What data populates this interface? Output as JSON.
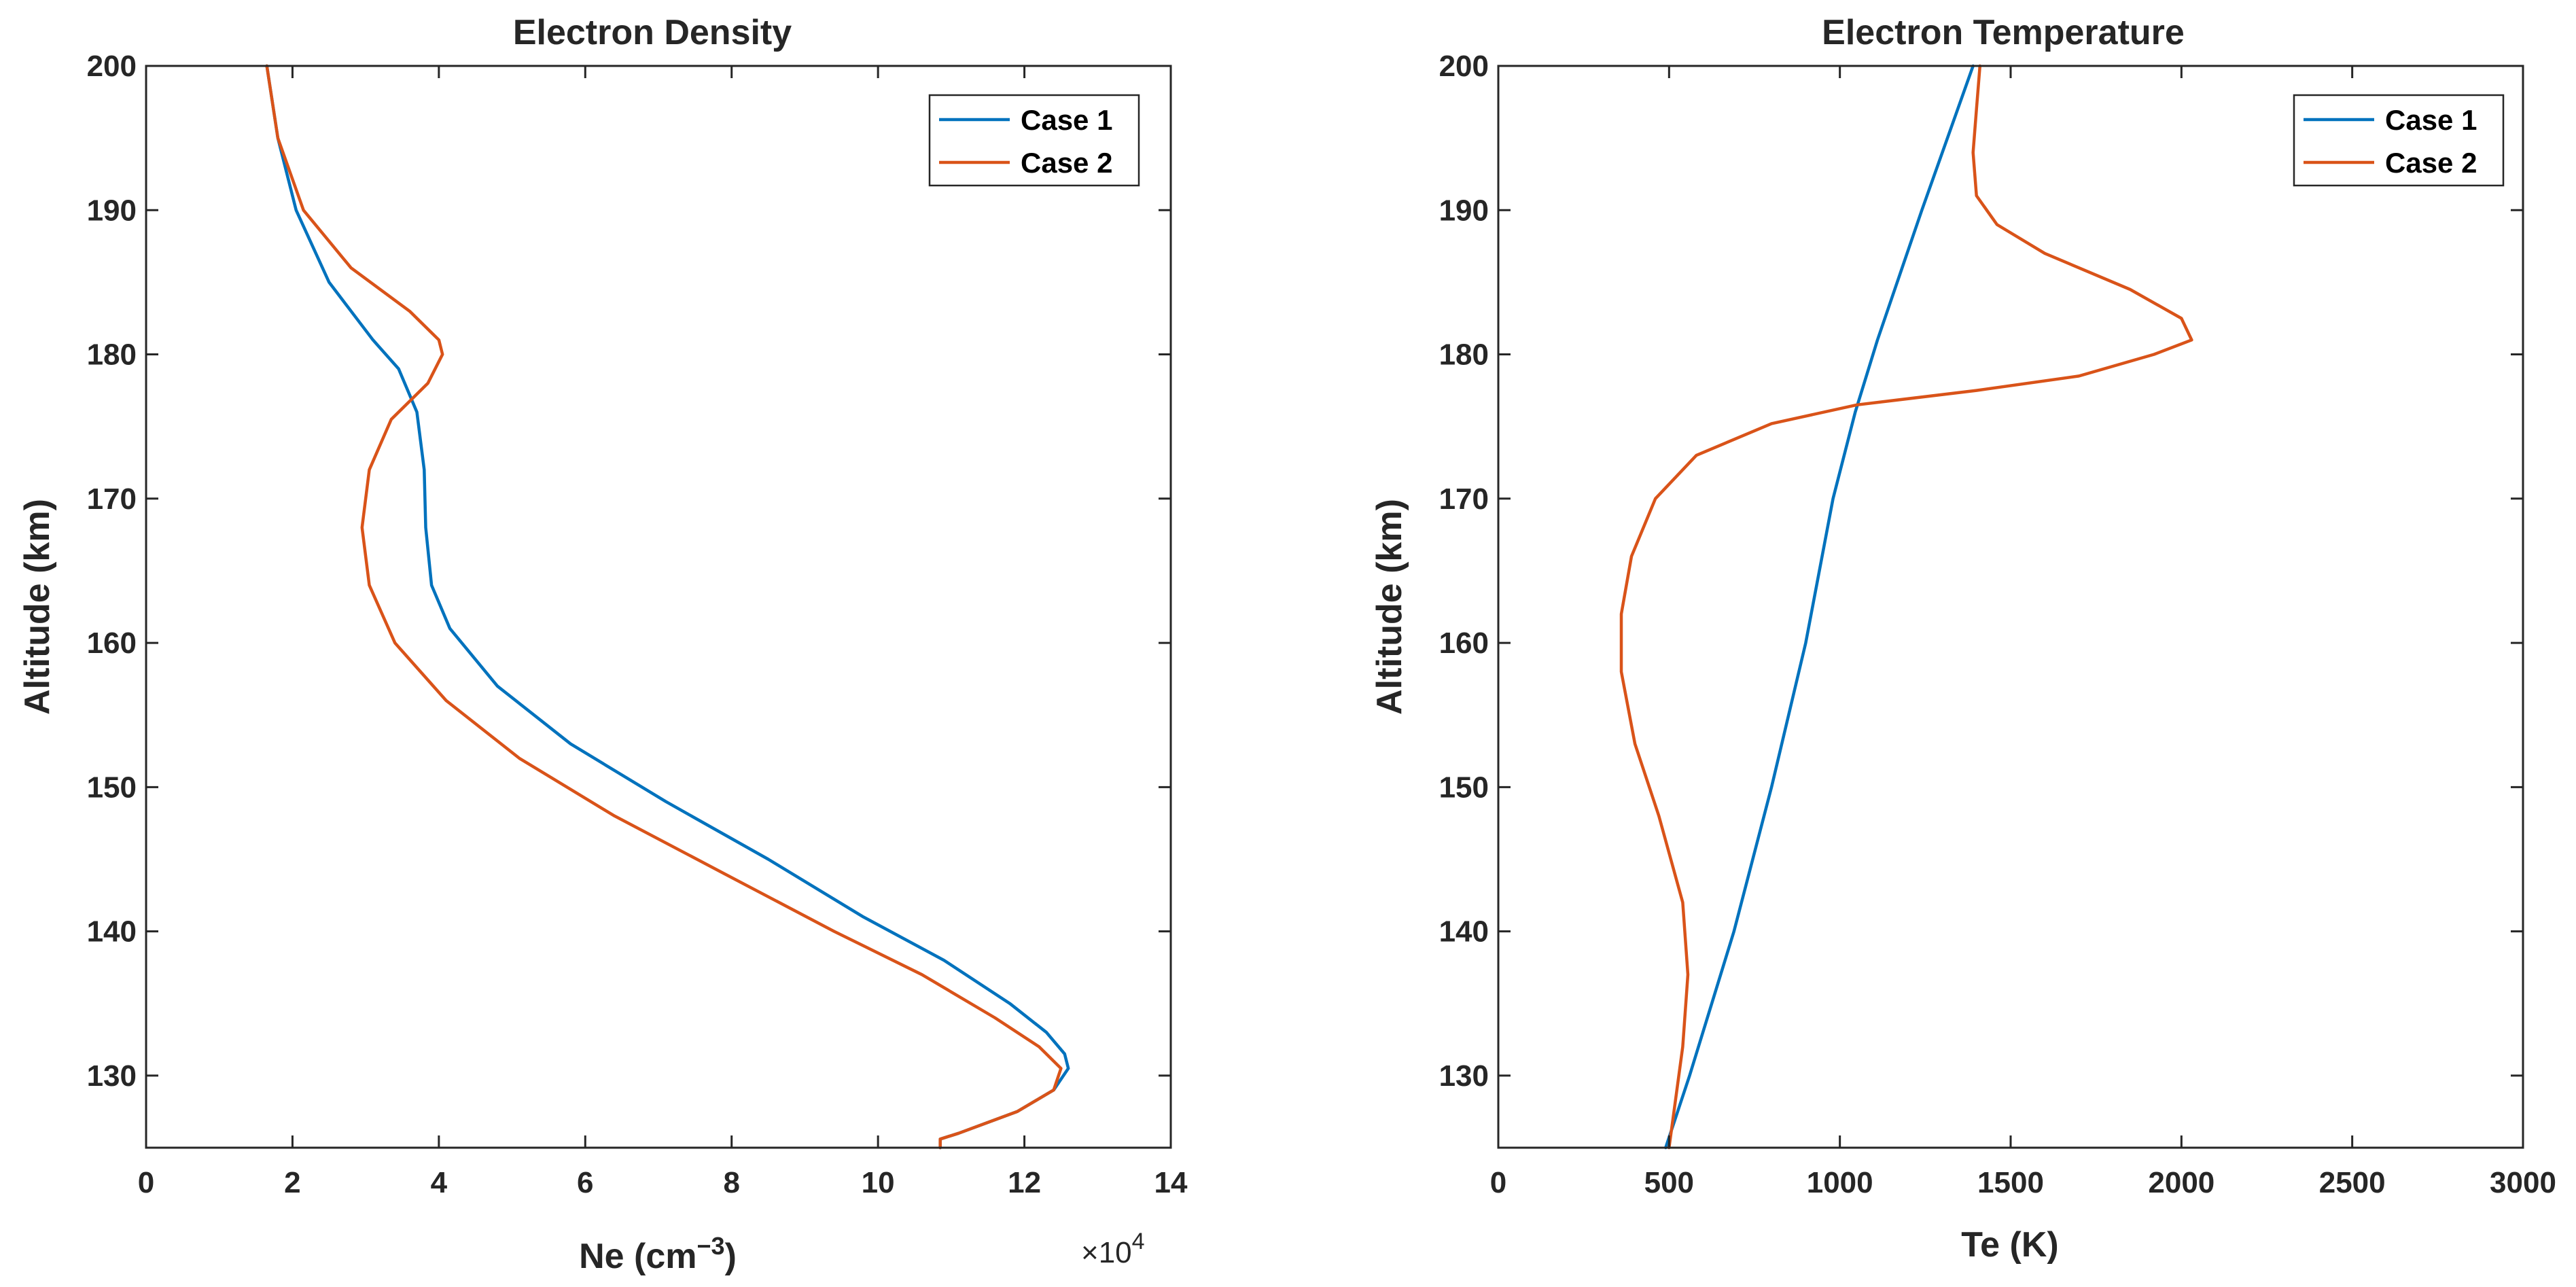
{
  "colors": {
    "case1": "#0072BD",
    "case2": "#D95319",
    "axis": "#262626"
  },
  "chart_data": [
    {
      "type": "line",
      "title": "Electron Density",
      "xlabel": "Ne (cm",
      "xlabel_exp": "−3",
      "xlabel_close": ")",
      "ylabel": "Altitude (km)",
      "x_multiplier": "×10",
      "x_multiplier_exp": "4",
      "xlim": [
        0,
        14
      ],
      "ylim": [
        125,
        200
      ],
      "xticks": [
        0,
        2,
        4,
        6,
        8,
        10,
        12,
        14
      ],
      "yticks": [
        130,
        140,
        150,
        160,
        170,
        180,
        190,
        200
      ],
      "legend": [
        "Case 1",
        "Case 2"
      ],
      "series": [
        {
          "name": "Case 1",
          "points": [
            [
              1.65,
              200
            ],
            [
              1.8,
              195
            ],
            [
              2.05,
              190
            ],
            [
              2.5,
              185
            ],
            [
              3.1,
              181
            ],
            [
              3.45,
              179
            ],
            [
              3.7,
              176
            ],
            [
              3.8,
              172
            ],
            [
              3.82,
              168
            ],
            [
              3.9,
              164
            ],
            [
              4.15,
              161
            ],
            [
              4.8,
              157
            ],
            [
              5.8,
              153
            ],
            [
              7.1,
              149
            ],
            [
              8.5,
              145
            ],
            [
              9.8,
              141
            ],
            [
              10.9,
              138
            ],
            [
              11.8,
              135
            ],
            [
              12.3,
              133
            ],
            [
              12.55,
              131.5
            ],
            [
              12.6,
              130.5
            ],
            [
              12.4,
              129
            ],
            [
              11.9,
              127.5
            ],
            [
              11.1,
              126
            ],
            [
              10.85,
              125.6
            ],
            [
              10.85,
              125
            ]
          ]
        },
        {
          "name": "Case 2",
          "points": [
            [
              1.65,
              200
            ],
            [
              1.8,
              195
            ],
            [
              2.15,
              190
            ],
            [
              2.8,
              186
            ],
            [
              3.6,
              183
            ],
            [
              4.0,
              181
            ],
            [
              4.05,
              180
            ],
            [
              3.85,
              178
            ],
            [
              3.35,
              175.5
            ],
            [
              3.05,
              172
            ],
            [
              2.95,
              168
            ],
            [
              3.05,
              164
            ],
            [
              3.4,
              160
            ],
            [
              4.1,
              156
            ],
            [
              5.1,
              152
            ],
            [
              6.4,
              148
            ],
            [
              7.9,
              144
            ],
            [
              9.4,
              140
            ],
            [
              10.6,
              137
            ],
            [
              11.6,
              134
            ],
            [
              12.2,
              132
            ],
            [
              12.5,
              130.5
            ],
            [
              12.4,
              129
            ],
            [
              11.9,
              127.5
            ],
            [
              11.1,
              126
            ],
            [
              10.85,
              125.6
            ],
            [
              10.85,
              125
            ]
          ]
        }
      ]
    },
    {
      "type": "line",
      "title": "Electron Temperature",
      "xlabel": "Te (K)",
      "ylabel": "Altitude (km)",
      "xlim": [
        0,
        3000
      ],
      "ylim": [
        125,
        200
      ],
      "xticks": [
        0,
        500,
        1000,
        1500,
        2000,
        2500,
        3000
      ],
      "yticks": [
        130,
        140,
        150,
        160,
        170,
        180,
        190,
        200
      ],
      "legend": [
        "Case 1",
        "Case 2"
      ],
      "series": [
        {
          "name": "Case 1",
          "points": [
            [
              490,
              125
            ],
            [
              560,
              130
            ],
            [
              690,
              140
            ],
            [
              800,
              150
            ],
            [
              900,
              160
            ],
            [
              980,
              170
            ],
            [
              1045,
              176
            ],
            [
              1110,
              181
            ],
            [
              1240,
              190
            ],
            [
              1390,
              200
            ]
          ]
        },
        {
          "name": "Case 2",
          "points": [
            [
              500,
              125
            ],
            [
              540,
              132
            ],
            [
              555,
              137
            ],
            [
              540,
              142
            ],
            [
              470,
              148
            ],
            [
              400,
              153
            ],
            [
              360,
              158
            ],
            [
              360,
              162
            ],
            [
              390,
              166
            ],
            [
              460,
              170
            ],
            [
              580,
              173
            ],
            [
              800,
              175.2
            ],
            [
              1050,
              176.5
            ],
            [
              1400,
              177.5
            ],
            [
              1700,
              178.5
            ],
            [
              1920,
              180
            ],
            [
              2030,
              181
            ],
            [
              2000,
              182.5
            ],
            [
              1850,
              184.5
            ],
            [
              1600,
              187
            ],
            [
              1460,
              189
            ],
            [
              1400,
              191
            ],
            [
              1390,
              194
            ],
            [
              1400,
              197
            ],
            [
              1410,
              200
            ]
          ]
        }
      ]
    }
  ]
}
